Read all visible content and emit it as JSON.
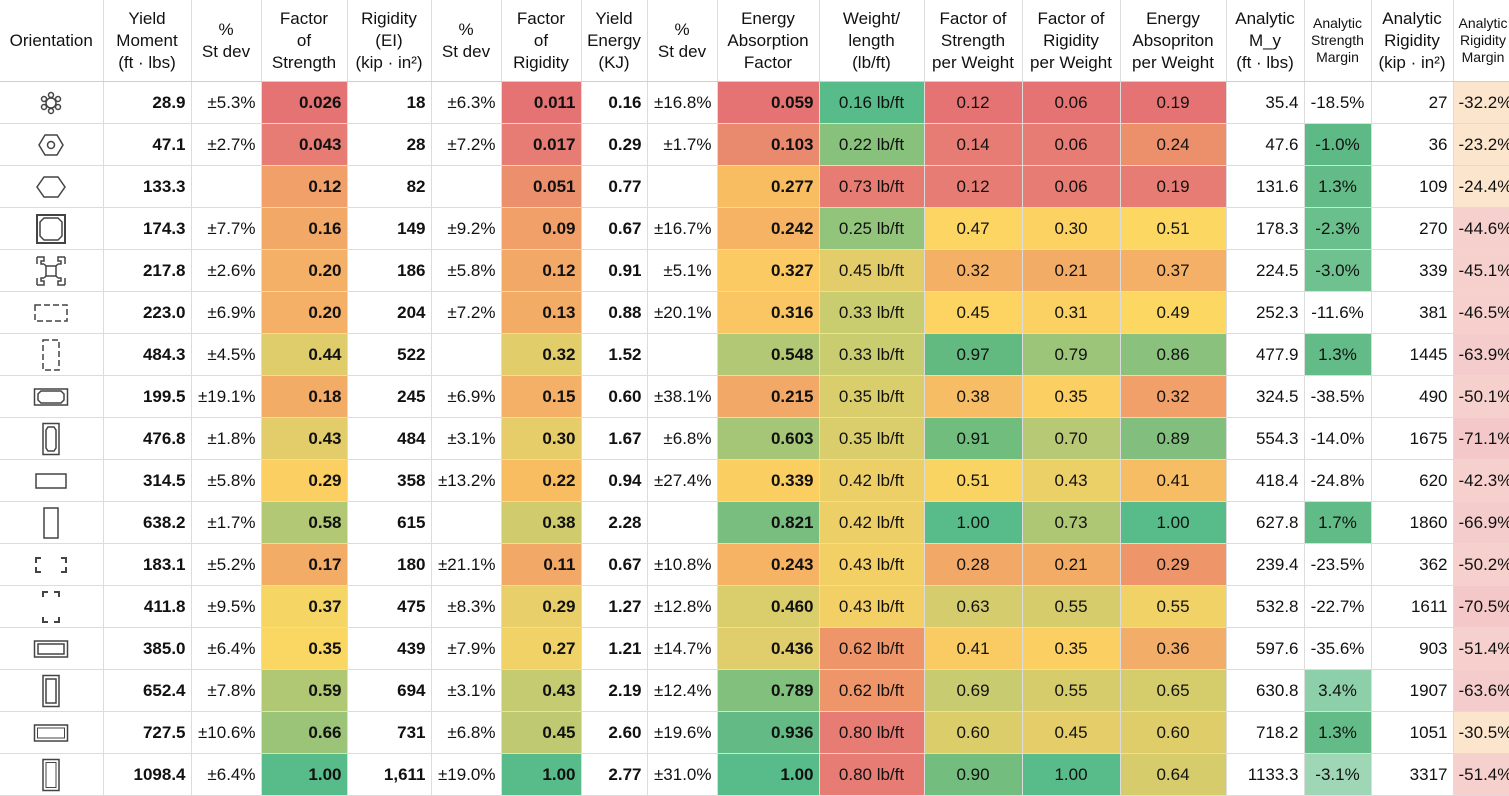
{
  "headers": [
    "Orientation",
    "Yield\nMoment\n(ft · lbs)",
    "%\nSt dev",
    "Factor\nof\nStrength",
    "Rigidity\n(EI)\n(kip · in²)",
    "%\nSt dev",
    "Factor\nof\nRigidity",
    "Yield\nEnergy\n(KJ)",
    "%\nSt dev",
    "Energy\nAbsorption\nFactor",
    "Weight/\nlength\n(lb/ft)",
    "Factor of\nStrength\nper Weight",
    "Factor of\nRigidity\nper Weight",
    "Energy\nAbsopriton\nper Weight",
    "Analytic\nM_y\n(ft · lbs)",
    "Analytic\nStrength\nMargin",
    "Analytic\nRigidity\n(kip · in²)",
    "Analytic\nRigidity\nMargin"
  ],
  "rows": [
    {
      "icon": "gear-profile-icon",
      "cells": [
        "28.9",
        "±5.3%",
        "0.026",
        "18",
        "±6.3%",
        "0.011",
        "0.16",
        "±16.8%",
        "0.059",
        "0.16 lb/ft",
        "0.12",
        "0.06",
        "0.19",
        "35.4",
        "-18.5%",
        "27",
        "-32.2%"
      ],
      "colors": [
        "",
        "",
        "#e57373",
        "",
        "",
        "#e57373",
        "",
        "",
        "#e57373",
        "#57bb8a",
        "#e57373",
        "#e57373",
        "#e57373",
        "",
        "",
        "",
        "#fce5cd"
      ]
    },
    {
      "icon": "hex-nut-icon",
      "cells": [
        "47.1",
        "±2.7%",
        "0.043",
        "28",
        "±7.2%",
        "0.017",
        "0.29",
        "±1.7%",
        "0.103",
        "0.22 lb/ft",
        "0.14",
        "0.06",
        "0.24",
        "47.6",
        "-1.0%",
        "36",
        "-23.2%"
      ],
      "colors": [
        "",
        "",
        "#e67c73",
        "",
        "",
        "#e67c73",
        "",
        "",
        "#e98a6e",
        "#88c17c",
        "#e67c73",
        "#e67c73",
        "#ec906c",
        "",
        "#5dba86",
        "",
        "#fce5cd"
      ]
    },
    {
      "icon": "hexagon-icon",
      "cells": [
        "133.3",
        "",
        "0.12",
        "82",
        "",
        "0.051",
        "0.77",
        "",
        "0.277",
        "0.73 lb/ft",
        "0.12",
        "0.06",
        "0.19",
        "131.6",
        "1.3%",
        "109",
        "-24.4%"
      ],
      "colors": [
        "",
        "",
        "#f0a068",
        "",
        "",
        "#ec8f6c",
        "",
        "",
        "#f8bd60",
        "#e67c73",
        "#e67c73",
        "#e67c73",
        "#e67c73",
        "",
        "#63bc88",
        "",
        "#fce5cd"
      ]
    },
    {
      "icon": "square-tube-corners-icon",
      "cells": [
        "174.3",
        "±7.7%",
        "0.16",
        "149",
        "±9.2%",
        "0.09",
        "0.67",
        "±16.7%",
        "0.242",
        "0.25 lb/ft",
        "0.47",
        "0.30",
        "0.51",
        "178.3",
        "-2.3%",
        "270",
        "-44.6%"
      ],
      "colors": [
        "",
        "",
        "#f2a866",
        "",
        "",
        "#f0a068",
        "",
        "",
        "#f6b363",
        "#93c47c",
        "#fdd562",
        "#fcd262",
        "#fcd862",
        "",
        "#6ac08d",
        "",
        "#f6d0cd"
      ]
    },
    {
      "icon": "extrusion-profile-icon",
      "cells": [
        "217.8",
        "±2.6%",
        "0.20",
        "186",
        "±5.8%",
        "0.12",
        "0.91",
        "±5.1%",
        "0.327",
        "0.45 lb/ft",
        "0.32",
        "0.21",
        "0.37",
        "224.5",
        "-3.0%",
        "339",
        "-45.1%"
      ],
      "colors": [
        "",
        "",
        "#f4b066",
        "",
        "",
        "#f2a866",
        "",
        "",
        "#fbca62",
        "#e3cd6b",
        "#f4b166",
        "#f3ac66",
        "#f4b066",
        "",
        "#6fc290",
        "",
        "#f6d0cd"
      ]
    },
    {
      "icon": "rect-dashed-icon",
      "cells": [
        "223.0",
        "±6.9%",
        "0.20",
        "204",
        "±7.2%",
        "0.13",
        "0.88",
        "±20.1%",
        "0.316",
        "0.33 lb/ft",
        "0.45",
        "0.31",
        "0.49",
        "252.3",
        "-11.6%",
        "381",
        "-46.5%"
      ],
      "colors": [
        "",
        "",
        "#f4b066",
        "",
        "",
        "#f3ac66",
        "",
        "",
        "#fac663",
        "#c9cc6f",
        "#fdd462",
        "#fbd163",
        "#fcd862",
        "",
        "",
        "",
        "#f6d0cd"
      ]
    },
    {
      "icon": "tall-rect-dashed-icon",
      "cells": [
        "484.3",
        "±4.5%",
        "0.44",
        "522",
        "",
        "0.32",
        "1.52",
        "",
        "0.548",
        "0.33 lb/ft",
        "0.97",
        "0.79",
        "0.86",
        "477.9",
        "1.3%",
        "1445",
        "-63.9%"
      ],
      "colors": [
        "",
        "",
        "#dfcd6b",
        "",
        "",
        "#e2cd6b",
        "",
        "",
        "#b3c874",
        "#c9cc6f",
        "#63ba80",
        "#9cc579",
        "#89c17d",
        "",
        "#63bc88",
        "",
        "#f4cccc"
      ]
    },
    {
      "icon": "wide-rect-tube-icon",
      "cells": [
        "199.5",
        "±19.1%",
        "0.18",
        "245",
        "±6.9%",
        "0.15",
        "0.60",
        "±38.1%",
        "0.215",
        "0.35 lb/ft",
        "0.38",
        "0.35",
        "0.32",
        "324.5",
        "-38.5%",
        "490",
        "-50.1%"
      ],
      "colors": [
        "",
        "",
        "#f3ac66",
        "",
        "",
        "#f4b066",
        "",
        "",
        "#f2a866",
        "#d9cd6c",
        "#f7bd65",
        "#fbcf62",
        "#f0a068",
        "",
        "",
        "",
        "#f6d0cd"
      ]
    },
    {
      "icon": "tall-rect-tube-icon",
      "cells": [
        "476.8",
        "±1.8%",
        "0.43",
        "484",
        "±3.1%",
        "0.30",
        "1.67",
        "±6.8%",
        "0.603",
        "0.35 lb/ft",
        "0.91",
        "0.70",
        "0.89",
        "554.3",
        "-14.0%",
        "1675",
        "-71.1%"
      ],
      "colors": [
        "",
        "",
        "#e3cd6b",
        "",
        "",
        "#e6cd6a",
        "",
        "",
        "#a5c677",
        "#d9cd6c",
        "#71bd7e",
        "#b7c974",
        "#82bf7e",
        "",
        "",
        "",
        "#f4c8c8"
      ]
    },
    {
      "icon": "wide-rect-thin-icon",
      "cells": [
        "314.5",
        "±5.8%",
        "0.29",
        "358",
        "±13.2%",
        "0.22",
        "0.94",
        "±27.4%",
        "0.339",
        "0.42 lb/ft",
        "0.51",
        "0.43",
        "0.41",
        "418.4",
        "-24.8%",
        "620",
        "-42.3%"
      ],
      "colors": [
        "",
        "",
        "#fbcf62",
        "",
        "",
        "#f8bd60",
        "",
        "",
        "#fbce62",
        "#edcf68",
        "#f9d462",
        "#ebd067",
        "#f7bd65",
        "",
        "",
        "",
        "#f6d0cd"
      ]
    },
    {
      "icon": "tall-rect-thin-icon",
      "cells": [
        "638.2",
        "±1.7%",
        "0.58",
        "615",
        "",
        "0.38",
        "2.28",
        "",
        "0.821",
        "0.42 lb/ft",
        "1.00",
        "0.73",
        "1.00",
        "627.8",
        "1.7%",
        "1860",
        "-66.9%"
      ],
      "colors": [
        "",
        "",
        "#b2c874",
        "",
        "",
        "#d0cc6d",
        "",
        "",
        "#79be7f",
        "#edcf68",
        "#57bb8a",
        "#aec775",
        "#57bb8a",
        "",
        "#60bb87",
        "",
        "#f4cccc"
      ]
    },
    {
      "icon": "corner-brackets-icon",
      "cells": [
        "183.1",
        "±5.2%",
        "0.17",
        "180",
        "±21.1%",
        "0.11",
        "0.67",
        "±10.8%",
        "0.243",
        "0.43 lb/ft",
        "0.28",
        "0.21",
        "0.29",
        "239.4",
        "-23.5%",
        "362",
        "-50.2%"
      ],
      "colors": [
        "",
        "",
        "#f3ac66",
        "",
        "",
        "#f2a866",
        "",
        "",
        "#f6b363",
        "#f2d065",
        "#f2a866",
        "#f3ac66",
        "#ee966a",
        "",
        "",
        "",
        "#f6d0cd"
      ]
    },
    {
      "icon": "tall-corner-brackets-icon",
      "cells": [
        "411.8",
        "±9.5%",
        "0.37",
        "475",
        "±8.3%",
        "0.29",
        "1.27",
        "±12.8%",
        "0.460",
        "0.43 lb/ft",
        "0.63",
        "0.55",
        "0.55",
        "532.8",
        "-22.7%",
        "1611",
        "-70.5%"
      ],
      "colors": [
        "",
        "",
        "#f5d563",
        "",
        "",
        "#e8cf69",
        "",
        "",
        "#d9cd6c",
        "#f2d065",
        "#d4cc6d",
        "#d6cc6c",
        "#f0d266",
        "",
        "",
        "",
        "#f4c8c8"
      ]
    },
    {
      "icon": "wide-rect-double-icon",
      "cells": [
        "385.0",
        "±6.4%",
        "0.35",
        "439",
        "±7.9%",
        "0.27",
        "1.21",
        "±14.7%",
        "0.436",
        "0.62 lb/ft",
        "0.41",
        "0.35",
        "0.36",
        "597.6",
        "-35.6%",
        "903",
        "-51.4%"
      ],
      "colors": [
        "",
        "",
        "#fad662",
        "",
        "",
        "#f0d266",
        "",
        "",
        "#e0cd6b",
        "#ee956a",
        "#fbcb63",
        "#fbcf62",
        "#f2ad68",
        "",
        "",
        "",
        "#f6d0cd"
      ]
    },
    {
      "icon": "tall-rect-double-icon",
      "cells": [
        "652.4",
        "±7.8%",
        "0.59",
        "694",
        "±3.1%",
        "0.43",
        "2.19",
        "±12.4%",
        "0.789",
        "0.62 lb/ft",
        "0.69",
        "0.55",
        "0.65",
        "630.8",
        "3.4%",
        "1907",
        "-63.6%"
      ],
      "colors": [
        "",
        "",
        "#b0c774",
        "",
        "",
        "#c5cb70",
        "",
        "",
        "#82c07e",
        "#ee956a",
        "#c9cb70",
        "#d6cc6c",
        "#d5cc6c",
        "",
        "#8ccfa8",
        "",
        "#f4cccc"
      ]
    },
    {
      "icon": "wide-rect-solid-icon",
      "cells": [
        "727.5",
        "±10.6%",
        "0.66",
        "731",
        "±6.8%",
        "0.45",
        "2.60",
        "±19.6%",
        "0.936",
        "0.80 lb/ft",
        "0.60",
        "0.45",
        "0.60",
        "718.2",
        "1.3%",
        "1051",
        "-30.5%"
      ],
      "colors": [
        "",
        "",
        "#9cc478",
        "",
        "",
        "#bfc972",
        "",
        "",
        "#63ba85",
        "#e67c73",
        "#dccd6b",
        "#e5ce69",
        "#dfcd6a",
        "",
        "#63bc88",
        "",
        "#fce5cd"
      ]
    },
    {
      "icon": "tall-rect-solid-icon",
      "cells": [
        "1098.4",
        "±6.4%",
        "1.00",
        "1,611",
        "±19.0%",
        "1.00",
        "2.77",
        "±31.0%",
        "1.00",
        "0.80 lb/ft",
        "0.90",
        "1.00",
        "0.64",
        "1133.3",
        "-3.1%",
        "3317",
        "-51.4%"
      ],
      "colors": [
        "",
        "",
        "#57bb8a",
        "",
        "",
        "#57bb8a",
        "",
        "",
        "#57bb8a",
        "#e67c73",
        "#73bd7e",
        "#57bb8a",
        "#d6cc6c",
        "",
        "#9fd6b6",
        "",
        "#f6d0cd"
      ]
    }
  ]
}
